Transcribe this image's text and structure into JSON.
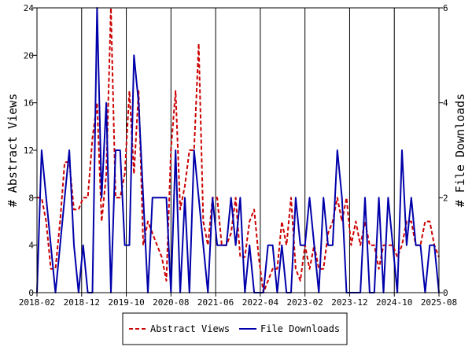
{
  "chart_data": {
    "type": "line",
    "x_tick_labels": [
      "2018-02",
      "2018-12",
      "2019-10",
      "2020-08",
      "2021-06",
      "2022-04",
      "2023-02",
      "2023-12",
      "2024-10",
      "2025-08"
    ],
    "y_left": {
      "label": "# Abstract Views",
      "ylim": [
        0,
        24
      ],
      "ticks": [
        "0",
        "4",
        "8",
        "12",
        "16",
        "20",
        "24"
      ]
    },
    "y_right": {
      "label": "# File Downloads",
      "ylim": [
        0,
        6
      ],
      "ticks": [
        "0",
        "2",
        "4",
        "6"
      ]
    },
    "grid": "vertical lines at x ticks",
    "legend_position": "bottom-center",
    "colors": {
      "abstract": "#cc0000",
      "downloads": "#0000aa"
    },
    "series": [
      {
        "name": "Abstract Views",
        "axis": "left",
        "style": "dashed",
        "values": [
          8,
          8,
          6,
          2,
          2,
          6,
          11,
          11,
          7,
          7,
          8,
          8,
          13,
          16,
          6,
          10,
          24,
          8,
          8,
          10,
          17,
          10,
          17,
          4,
          6,
          5,
          4,
          3,
          1,
          12,
          17,
          7,
          9,
          12,
          12,
          21,
          6,
          4,
          8,
          8,
          4,
          4,
          5,
          8,
          3,
          3,
          6,
          7,
          3,
          0,
          1,
          2,
          2,
          6,
          4,
          8,
          2,
          1,
          4,
          2,
          4,
          2,
          2,
          5,
          6,
          8,
          6,
          8,
          4,
          6,
          4,
          6,
          4,
          4,
          2,
          4,
          4,
          4,
          3,
          4,
          6,
          6,
          4,
          4,
          6,
          6,
          4,
          3
        ]
      },
      {
        "name": "File Downloads",
        "axis": "right",
        "style": "solid",
        "values": [
          0,
          3,
          2,
          1,
          0,
          1,
          2,
          3,
          1,
          0,
          1,
          0,
          0,
          6,
          2,
          4,
          0,
          3,
          3,
          1,
          1,
          5,
          4,
          2,
          0,
          2,
          2,
          2,
          2,
          0,
          3,
          0,
          2,
          0,
          3,
          2,
          1,
          0,
          2,
          1,
          1,
          1,
          2,
          1,
          2,
          0,
          1,
          0,
          0,
          0,
          1,
          1,
          0,
          1,
          0,
          0,
          2,
          1,
          1,
          2,
          1,
          0,
          2,
          1,
          1,
          3,
          2,
          0,
          0,
          0,
          0,
          2,
          0,
          0,
          2,
          0,
          2,
          1,
          0,
          3,
          1,
          2,
          1,
          1,
          0,
          1,
          1,
          0
        ]
      }
    ]
  }
}
